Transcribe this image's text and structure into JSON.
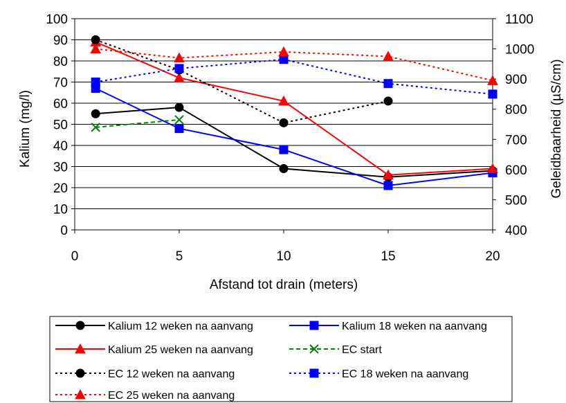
{
  "chart_data": {
    "type": "line",
    "xlabel": "Afstand tot drain (meters)",
    "ylabel": "Kalium (mg/l)",
    "y2label": "Geleidbaarheid (µS/cm)",
    "xlim": [
      0,
      20
    ],
    "ylim": [
      0,
      100
    ],
    "y2lim": [
      400,
      1100
    ],
    "xticks": [
      "0",
      "5",
      "10",
      "15",
      "20"
    ],
    "yticks": [
      "0",
      "10",
      "20",
      "30",
      "40",
      "50",
      "60",
      "70",
      "80",
      "90",
      "100"
    ],
    "y2ticks": [
      "400",
      "500",
      "600",
      "700",
      "800",
      "900",
      "1000",
      "1100"
    ],
    "grid": true,
    "legend_position": "bottom",
    "series": [
      {
        "name": "Kalium 12 weken na aanvang",
        "axis": "left",
        "color": "#000000",
        "dash": "solid",
        "marker": "circle",
        "x": [
          1,
          5,
          10,
          15,
          20
        ],
        "y": [
          55,
          58,
          29,
          25,
          28
        ]
      },
      {
        "name": "Kalium 18 weken na aanvang",
        "axis": "left",
        "color": "#0000ff",
        "dash": "solid",
        "marker": "square",
        "x": [
          1,
          5,
          10,
          15,
          20
        ],
        "y": [
          67,
          48,
          38,
          21,
          27
        ]
      },
      {
        "name": "Kalium 25 weken na aanvang",
        "axis": "left",
        "color": "#ff0000",
        "dash": "solid",
        "marker": "triangle",
        "x": [
          1,
          5,
          10,
          15,
          20
        ],
        "y": [
          89,
          72,
          61,
          26,
          29
        ]
      },
      {
        "name": "EC start",
        "axis": "right",
        "color": "#008000",
        "dash": "dashed",
        "marker": "x",
        "x": [
          1,
          5
        ],
        "y": [
          740,
          765
        ]
      },
      {
        "name": "EC 12 weken na aanvang",
        "axis": "right",
        "color": "#000000",
        "dash": "dotted",
        "marker": "circle",
        "x": [
          1,
          5,
          10,
          15
        ],
        "y": [
          1030,
          930,
          755,
          827
        ]
      },
      {
        "name": "EC 18 weken na aanvang",
        "axis": "right",
        "color": "#0000ff",
        "dash": "dotted",
        "marker": "square",
        "x": [
          1,
          5,
          10,
          15,
          20
        ],
        "y": [
          890,
          935,
          965,
          885,
          850
        ]
      },
      {
        "name": "EC 25 weken na aanvang",
        "axis": "right",
        "color": "#ff0000",
        "dash": "dotted",
        "marker": "triangle",
        "x": [
          1,
          5,
          10,
          15,
          20
        ],
        "y": [
          1000,
          970,
          990,
          975,
          895
        ]
      }
    ]
  }
}
